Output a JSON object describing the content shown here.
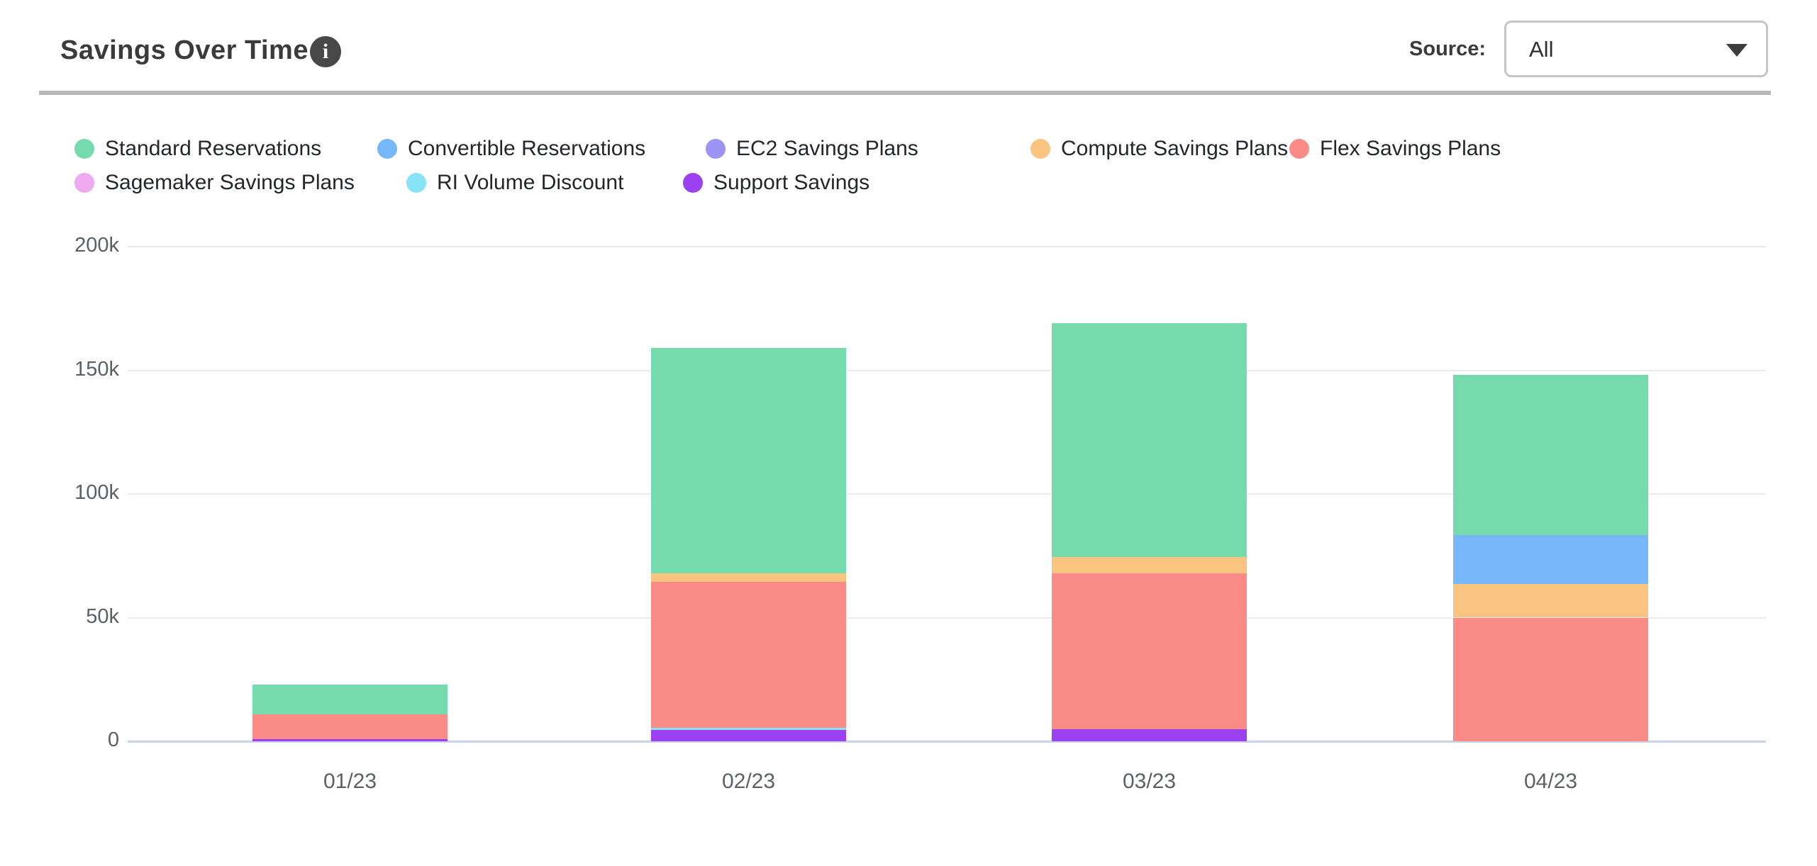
{
  "header": {
    "title": "Savings Over Time",
    "info_icon_glyph": "i",
    "source_label": "Source:",
    "source_value": "All"
  },
  "legend": {
    "items": [
      {
        "label": "Standard Reservations",
        "color": "#75DBAD",
        "row": 0
      },
      {
        "label": "Convertible Reservations",
        "color": "#76B7FA",
        "row": 0
      },
      {
        "label": "EC2 Savings Plans",
        "color": "#9D93F6",
        "row": 0
      },
      {
        "label": "Compute Savings Plans",
        "color": "#F8C480",
        "row": 0
      },
      {
        "label": "Flex Savings Plans",
        "color": "#FB8B86",
        "row": 0
      },
      {
        "label": "Sagemaker Savings Plans",
        "color": "#EFA9EE",
        "row": 1
      },
      {
        "label": "RI Volume Discount",
        "color": "#86E3F8",
        "row": 1
      },
      {
        "label": "Support Savings",
        "color": "#9C41F2",
        "row": 1
      }
    ]
  },
  "chart_data": {
    "type": "bar",
    "stacked": true,
    "title": "Savings Over Time",
    "xlabel": "",
    "ylabel": "",
    "categories": [
      "01/23",
      "02/23",
      "03/23",
      "04/23"
    ],
    "series": [
      {
        "name": "Support Savings",
        "color": "#9C41F2",
        "values": [
          1000,
          4500,
          5000,
          0
        ]
      },
      {
        "name": "RI Volume Discount",
        "color": "#86E3F8",
        "values": [
          0,
          1000,
          0,
          0
        ]
      },
      {
        "name": "Flex Savings Plans",
        "color": "#FB8B86",
        "values": [
          10000,
          59000,
          63000,
          50000
        ]
      },
      {
        "name": "Compute Savings Plans",
        "color": "#F8C480",
        "values": [
          0,
          3500,
          6500,
          13500
        ]
      },
      {
        "name": "Convertible Reservations",
        "color": "#76B7FA",
        "values": [
          0,
          0,
          0,
          20000
        ]
      },
      {
        "name": "Standard Reservations",
        "color": "#75DBAD",
        "values": [
          12000,
          91000,
          94500,
          64500
        ]
      },
      {
        "name": "EC2 Savings Plans",
        "color": "#9D93F6",
        "values": [
          0,
          0,
          0,
          0
        ]
      },
      {
        "name": "Sagemaker Savings Plans",
        "color": "#EFA9EE",
        "values": [
          0,
          0,
          0,
          0
        ]
      }
    ],
    "totals": [
      23000,
      159000,
      169000,
      148000
    ],
    "ylim": [
      0,
      200000
    ],
    "y_ticks": [
      {
        "label": "200k",
        "value": 200000
      },
      {
        "label": "150k",
        "value": 150000
      },
      {
        "label": "100k",
        "value": 100000
      },
      {
        "label": "50k",
        "value": 50000
      },
      {
        "label": "0",
        "value": 0
      }
    ],
    "grid": true,
    "legend_position": "top"
  }
}
